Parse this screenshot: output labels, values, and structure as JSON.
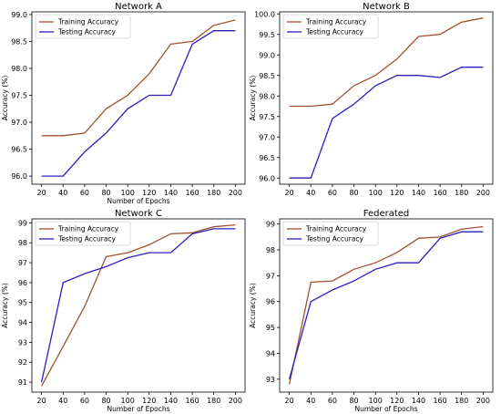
{
  "colors": {
    "training": "#a0522d",
    "testing": "#2a1fc0"
  },
  "chart_data": [
    {
      "type": "line",
      "title": "Network A",
      "xlabel": "Number of Epochs",
      "ylabel": "Accuracy (%)",
      "x": [
        20,
        40,
        60,
        80,
        100,
        120,
        140,
        160,
        180,
        200
      ],
      "xticks": [
        20,
        40,
        60,
        80,
        100,
        120,
        140,
        160,
        180,
        200
      ],
      "ylim": [
        95.85,
        99.05
      ],
      "yticks": [
        96.0,
        96.5,
        97.0,
        97.5,
        98.0,
        98.5,
        99.0
      ],
      "ytick_labels": [
        "96.0",
        "96.5",
        "97.0",
        "97.5",
        "98.0",
        "98.5",
        "99.0"
      ],
      "legend": "top-left",
      "series": [
        {
          "name": "Training Accuracy",
          "color": "#a0522d",
          "values": [
            96.75,
            96.75,
            96.8,
            97.25,
            97.5,
            97.9,
            98.45,
            98.5,
            98.8,
            98.9
          ]
        },
        {
          "name": "Testing Accuracy",
          "color": "#2a1fc0",
          "values": [
            96.0,
            96.0,
            96.45,
            96.8,
            97.25,
            97.5,
            97.5,
            98.45,
            98.7,
            98.7
          ]
        }
      ]
    },
    {
      "type": "line",
      "title": "Network B",
      "xlabel": "",
      "ylabel": "Accuracy (%)",
      "x": [
        20,
        40,
        60,
        80,
        100,
        120,
        140,
        160,
        180,
        200
      ],
      "xticks": [
        20,
        40,
        60,
        80,
        100,
        120,
        140,
        160,
        180,
        200
      ],
      "ylim": [
        95.85,
        100.05
      ],
      "yticks": [
        96.0,
        96.5,
        97.0,
        97.5,
        98.0,
        98.5,
        99.0,
        99.5,
        100.0
      ],
      "ytick_labels": [
        "96.0",
        "96.5",
        "97.0",
        "97.5",
        "98.0",
        "98.5",
        "99.0",
        "99.5",
        "100.0"
      ],
      "legend": "top-left",
      "series": [
        {
          "name": "Training Accuracy",
          "color": "#a0522d",
          "values": [
            97.75,
            97.75,
            97.8,
            98.25,
            98.5,
            98.9,
            99.45,
            99.5,
            99.8,
            99.9
          ]
        },
        {
          "name": "Testing Accuracy",
          "color": "#2a1fc0",
          "values": [
            96.0,
            96.0,
            97.45,
            97.8,
            98.25,
            98.5,
            98.5,
            98.45,
            98.7,
            98.7
          ]
        }
      ]
    },
    {
      "type": "line",
      "title": "Network C",
      "xlabel": "Number of Epochs",
      "ylabel": "Accuracy (%)",
      "x": [
        20,
        40,
        60,
        80,
        100,
        120,
        140,
        160,
        180,
        200
      ],
      "xticks": [
        20,
        40,
        60,
        80,
        100,
        120,
        140,
        160,
        180,
        200
      ],
      "ylim": [
        90.5,
        99.2
      ],
      "yticks": [
        91,
        92,
        93,
        94,
        95,
        96,
        97,
        98,
        99
      ],
      "ytick_labels": [
        "91",
        "92",
        "93",
        "94",
        "95",
        "96",
        "97",
        "98",
        "99"
      ],
      "legend": "top-left",
      "series": [
        {
          "name": "Training Accuracy",
          "color": "#a0522d",
          "values": [
            90.8,
            92.8,
            94.8,
            97.3,
            97.5,
            97.9,
            98.45,
            98.5,
            98.8,
            98.9
          ]
        },
        {
          "name": "Testing Accuracy",
          "color": "#2a1fc0",
          "values": [
            91.0,
            96.0,
            96.45,
            96.8,
            97.25,
            97.5,
            97.5,
            98.45,
            98.7,
            98.7
          ]
        }
      ]
    },
    {
      "type": "line",
      "title": "Federated",
      "xlabel": "Number of Epochs",
      "ylabel": "Accuracy (%)",
      "x": [
        20,
        40,
        60,
        80,
        100,
        120,
        140,
        160,
        180,
        200
      ],
      "xticks": [
        20,
        40,
        60,
        80,
        100,
        120,
        140,
        160,
        180,
        200
      ],
      "ylim": [
        92.5,
        99.2
      ],
      "yticks": [
        93,
        94,
        95,
        96,
        97,
        98,
        99
      ],
      "ytick_labels": [
        "93",
        "94",
        "95",
        "96",
        "97",
        "98",
        "99"
      ],
      "legend": "top-left",
      "series": [
        {
          "name": "Training Accuracy",
          "color": "#a0522d",
          "values": [
            92.8,
            96.75,
            96.8,
            97.25,
            97.5,
            97.9,
            98.45,
            98.5,
            98.8,
            98.9
          ]
        },
        {
          "name": "Testing Accuracy",
          "color": "#2a1fc0",
          "values": [
            93.0,
            96.0,
            96.45,
            96.8,
            97.25,
            97.5,
            97.5,
            98.45,
            98.7,
            98.7
          ]
        }
      ]
    }
  ]
}
